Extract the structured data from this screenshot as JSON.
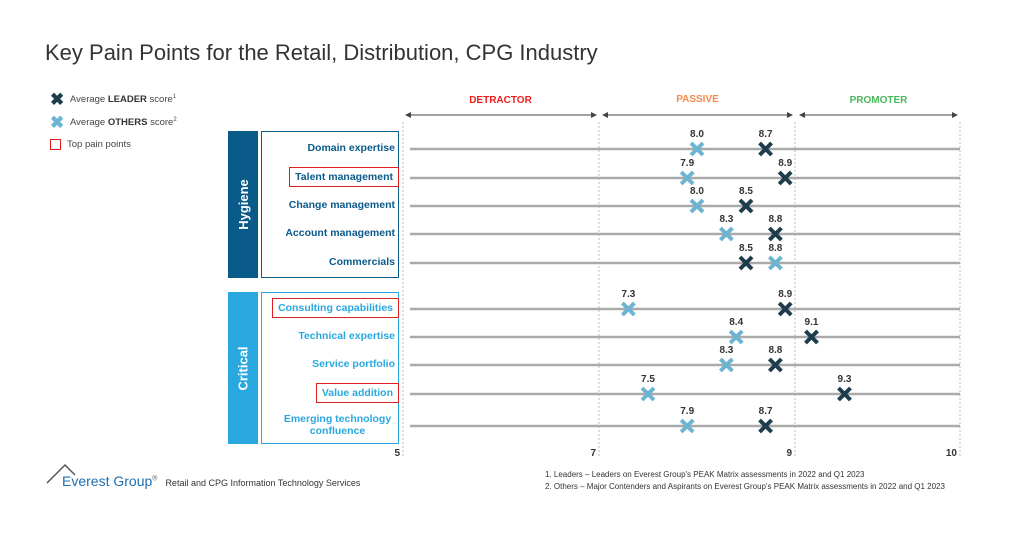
{
  "title": "Key Pain Points for the Retail, Distribution, CPG Industry",
  "legend": {
    "leader_pre": "Average ",
    "leader_bold": "LEADER",
    "leader_post": " score",
    "leader_sup": "1",
    "others_pre": "Average ",
    "others_bold": "OTHERS",
    "others_post": " score",
    "others_sup": "2",
    "top": "Top pain points"
  },
  "colors": {
    "leader": "#1d3d4c",
    "others": "#6cb4d1",
    "hygiene": "#0a5a8a",
    "critical": "#29a8e0",
    "detractor": "#ee1c1c",
    "passive": "#f58a4b",
    "promoter": "#4cb85c"
  },
  "chart_data": {
    "type": "scatter",
    "title": "Key Pain Points for the Retail, Distribution, CPG Industry",
    "zones": [
      {
        "label": "DETRACTOR",
        "range": [
          5,
          7
        ]
      },
      {
        "label": "PASSIVE",
        "range": [
          7,
          9
        ]
      },
      {
        "label": "PROMOTER",
        "range": [
          9,
          10
        ]
      }
    ],
    "x_ticks": [
      "5",
      "7",
      "9",
      "10"
    ],
    "xlim": [
      5,
      10
    ],
    "groups": [
      {
        "name": "Hygiene",
        "items": [
          {
            "label": "Domain expertise",
            "others": 8.0,
            "leader": 8.7,
            "top": false
          },
          {
            "label": "Talent management",
            "others": 7.9,
            "leader": 8.9,
            "top": true
          },
          {
            "label": "Change management",
            "others": 8.0,
            "leader": 8.5,
            "top": false
          },
          {
            "label": "Account management",
            "others": 8.3,
            "leader": 8.8,
            "top": false
          },
          {
            "label": "Commercials",
            "others": 8.8,
            "leader": 8.5,
            "top": false
          }
        ]
      },
      {
        "name": "Critical",
        "items": [
          {
            "label": "Consulting capabilities",
            "others": 7.3,
            "leader": 8.9,
            "top": true
          },
          {
            "label": "Technical expertise",
            "others": 8.4,
            "leader": 9.1,
            "top": false
          },
          {
            "label": "Service portfolio",
            "others": 8.3,
            "leader": 8.8,
            "top": false
          },
          {
            "label": "Value addition",
            "others": 7.5,
            "leader": 9.3,
            "top": true
          },
          {
            "label": "Emerging technology confluence",
            "others": 7.9,
            "leader": 8.7,
            "top": false
          }
        ]
      }
    ]
  },
  "footer": {
    "brand": "Everest Group",
    "reg": "®",
    "subtitle": "Retail and CPG Information Technology Services",
    "note1": "1. Leaders – Leaders on Everest Group's PEAK Matrix assessments in 2022 and Q1 2023",
    "note2": "2. Others – Major Contenders and Aspirants on Everest Group's PEAK Matrix assessments in 2022 and Q1 2023"
  }
}
